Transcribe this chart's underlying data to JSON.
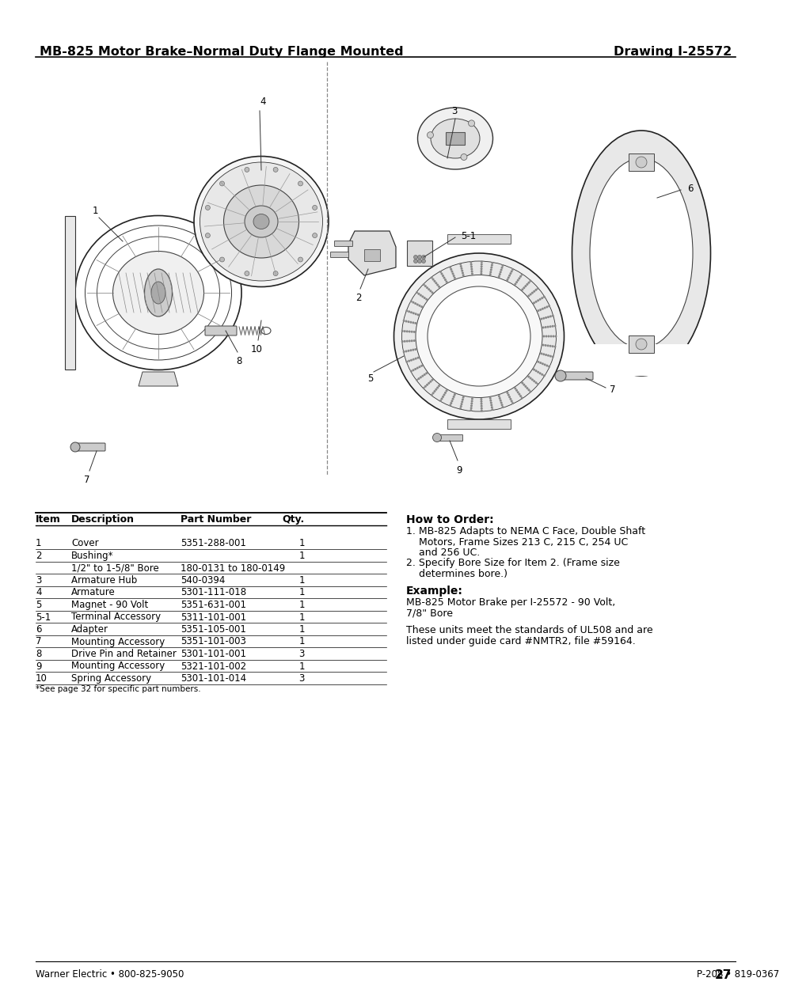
{
  "title_left": "MB-825 Motor Brake–Normal Duty Flange Mounted",
  "title_right": "Drawing I-25572",
  "table_headers": [
    "Item",
    "Description",
    "Part Number",
    "Qty."
  ],
  "table_rows": [
    [
      "1",
      "Cover",
      "5351-288-001",
      "1"
    ],
    [
      "2",
      "Bushing*",
      "",
      "1"
    ],
    [
      "",
      "1/2\" to 1-5/8\" Bore",
      "180-0131 to 180-0149",
      ""
    ],
    [
      "3",
      "Armature Hub",
      "540-0394",
      "1"
    ],
    [
      "4",
      "Armature",
      "5301-111-018",
      "1"
    ],
    [
      "5",
      "Magnet - 90 Volt",
      "5351-631-001",
      "1"
    ],
    [
      "5-1",
      "Terminal Accessory",
      "5311-101-001",
      "1"
    ],
    [
      "6",
      "Adapter",
      "5351-105-001",
      "1"
    ],
    [
      "7",
      "Mounting Accessory",
      "5351-101-003",
      "1"
    ],
    [
      "8",
      "Drive Pin and Retainer",
      "5301-101-001",
      "3"
    ],
    [
      "9",
      "Mounting Accessory",
      "5321-101-002",
      "1"
    ],
    [
      "10",
      "Spring Accessory",
      "5301-101-014",
      "3"
    ]
  ],
  "table_footnote": "*See page 32 for specific part numbers.",
  "how_to_order_title": "How to Order:",
  "how_to_order_lines": [
    "1. MB-825 Adapts to NEMA C Face, Double Shaft",
    "    Motors, Frame Sizes 213 C, 215 C, 254 UC",
    "    and 256 UC.",
    "2. Specify Bore Size for Item 2. (Frame size",
    "    determines bore.)"
  ],
  "example_title": "Example:",
  "example_lines": [
    "MB-825 Motor Brake per I-25572 - 90 Volt,",
    "7/8\" Bore"
  ],
  "standards_lines": [
    "These units meet the standards of UL508 and are",
    "listed under guide card #NMTR2, file #59164."
  ],
  "footer_left": "Warner Electric • 800-825-9050",
  "footer_right": "P-208 • 819-0367",
  "footer_page": "27",
  "bg_color": "#ffffff",
  "text_color": "#000000"
}
